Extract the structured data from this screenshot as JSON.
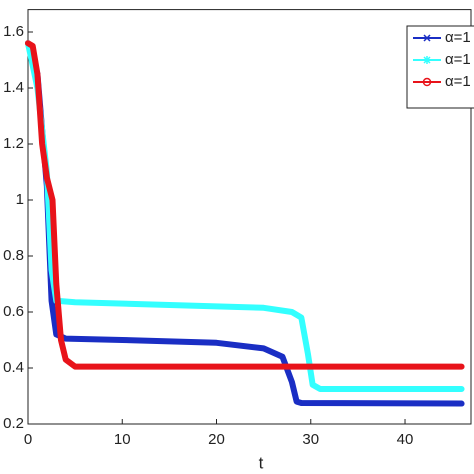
{
  "chart_data": {
    "type": "line",
    "x_label": "t",
    "xlim": [
      0,
      47
    ],
    "xticks": [
      0,
      10,
      20,
      30,
      40
    ],
    "ylim": [
      0.2,
      1.68
    ],
    "yticks": [
      0.2,
      0.4,
      0.6,
      0.8,
      1,
      1.2,
      1.4,
      1.6
    ],
    "legend": "top-right",
    "series": [
      {
        "name": "α=1",
        "color": "#1a2ec4",
        "marker": "x",
        "x": [
          0,
          1,
          2,
          2.5,
          3,
          4,
          10,
          20,
          25,
          27,
          28,
          28.5,
          29,
          46
        ],
        "values": [
          1.56,
          1.45,
          1.05,
          0.64,
          0.52,
          0.505,
          0.5,
          0.49,
          0.47,
          0.44,
          0.35,
          0.28,
          0.275,
          0.273
        ]
      },
      {
        "name": "α=1",
        "color": "#33ffff",
        "marker": "*",
        "x": [
          0,
          1,
          2,
          2.5,
          3,
          5,
          15,
          25,
          28,
          29,
          29.7,
          30.2,
          31,
          46
        ],
        "values": [
          1.56,
          1.4,
          1.1,
          0.75,
          0.64,
          0.635,
          0.625,
          0.615,
          0.6,
          0.58,
          0.45,
          0.34,
          0.325,
          0.325
        ]
      },
      {
        "name": "α=1",
        "color": "#e8131a",
        "marker": "o",
        "x": [
          0,
          0.5,
          1,
          1.5,
          2,
          2.6,
          3,
          3.5,
          4,
          5,
          46
        ],
        "values": [
          1.56,
          1.55,
          1.45,
          1.2,
          1.08,
          1.0,
          0.7,
          0.5,
          0.43,
          0.405,
          0.405
        ]
      }
    ]
  }
}
